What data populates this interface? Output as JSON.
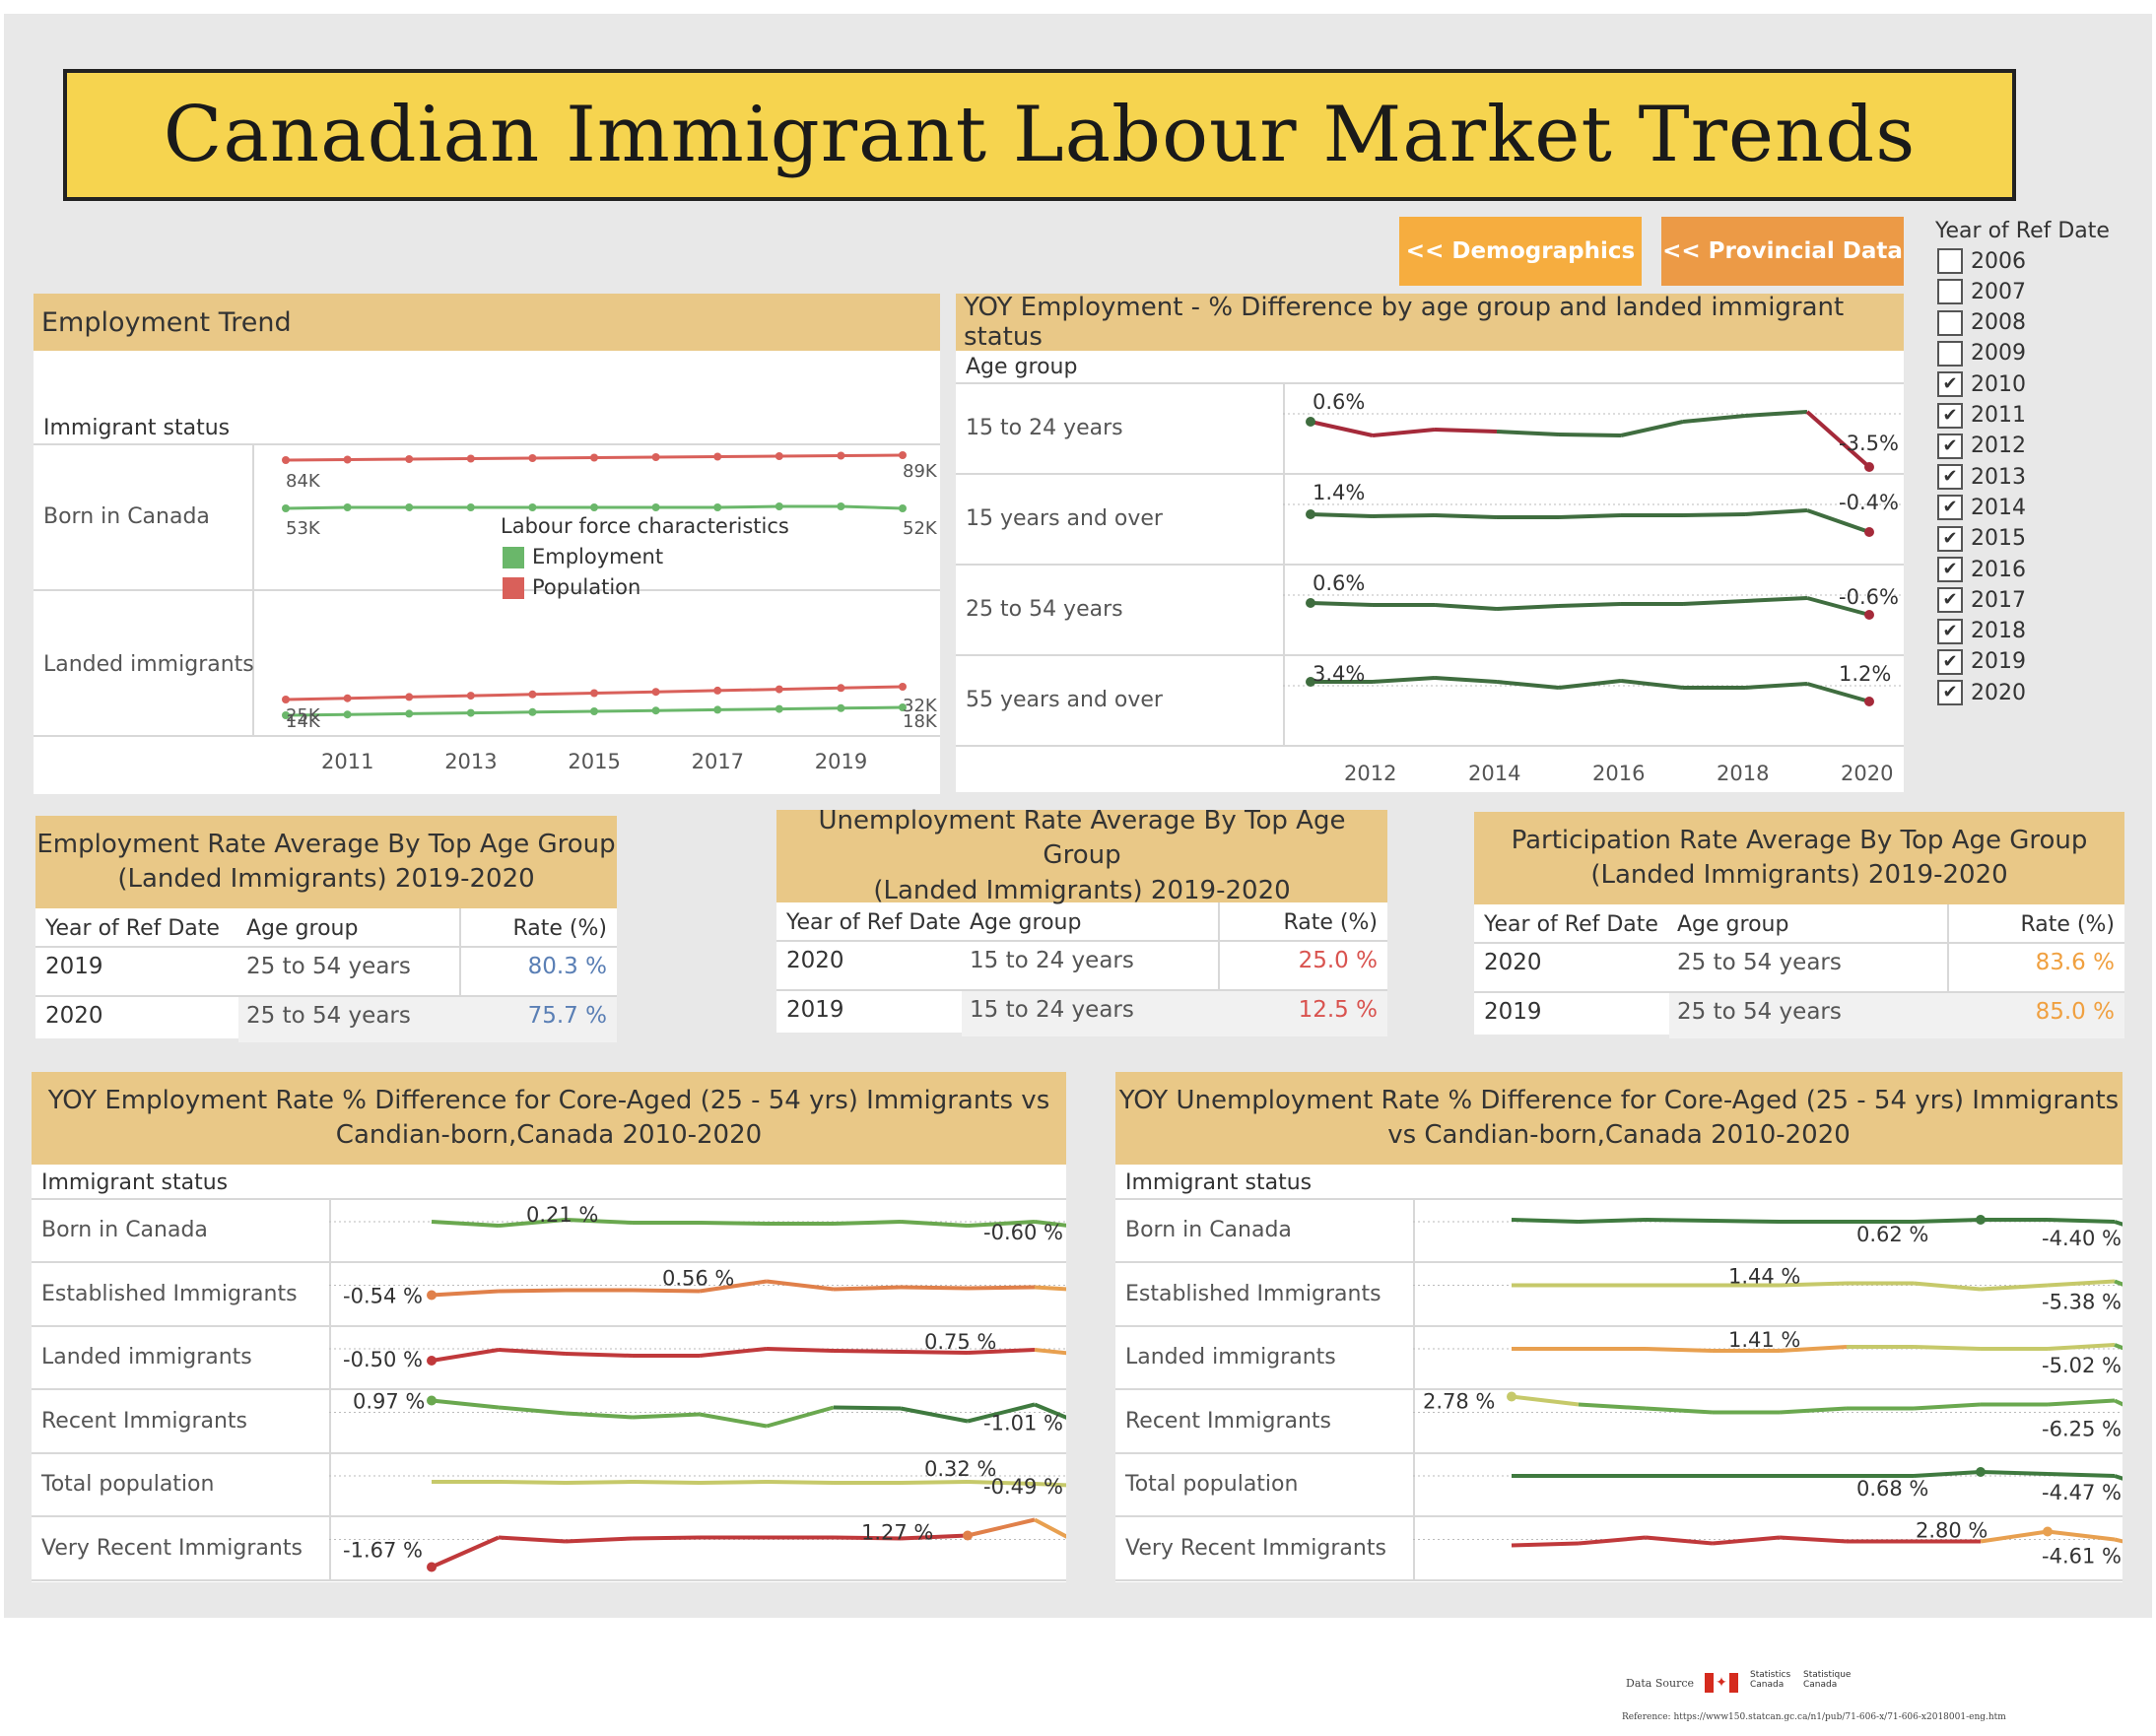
{
  "title": "Canadian Immigrant Labour Market Trends",
  "nav": {
    "demographics": "<< Demographics",
    "provincial": "<< Provincial Data",
    "colors": {
      "demographics": "#f6ad3f",
      "provincial": "#ec9a46"
    }
  },
  "filter": {
    "title": "Year of Ref Date",
    "items": [
      {
        "year": "2006",
        "checked": false
      },
      {
        "year": "2007",
        "checked": false
      },
      {
        "year": "2008",
        "checked": false
      },
      {
        "year": "2009",
        "checked": false
      },
      {
        "year": "2010",
        "checked": true
      },
      {
        "year": "2011",
        "checked": true
      },
      {
        "year": "2012",
        "checked": true
      },
      {
        "year": "2013",
        "checked": true
      },
      {
        "year": "2014",
        "checked": true
      },
      {
        "year": "2015",
        "checked": true
      },
      {
        "year": "2016",
        "checked": true
      },
      {
        "year": "2017",
        "checked": true
      },
      {
        "year": "2018",
        "checked": true
      },
      {
        "year": "2019",
        "checked": true
      },
      {
        "year": "2020",
        "checked": true
      }
    ],
    "check_glyph": "✔"
  },
  "employment_trend": {
    "title": "Employment Trend",
    "row_header": "Immigrant status",
    "rows": [
      "Born in Canada",
      "Landed immigrants"
    ],
    "legend_title": "Labour force characteristics",
    "legend": [
      {
        "name": "Employment",
        "color": "#6ab76a"
      },
      {
        "name": "Population",
        "color": "#d9605a"
      }
    ],
    "x_ticks": [
      "2011",
      "2013",
      "2015",
      "2017",
      "2019"
    ],
    "labels": {
      "born_pop_start": "84K",
      "born_pop_end": "89K",
      "born_emp_start": "53K",
      "born_emp_end": "52K",
      "landed_pop_start": "25K",
      "landed_pop_end": "32K",
      "landed_emp_start": "14K",
      "landed_emp_end": "18K"
    }
  },
  "yoy_age": {
    "title": "YOY Employment - % Difference by age group and landed immigrant status",
    "row_header": "Age group",
    "rows": [
      {
        "label": "15 to 24 years",
        "start": "0.6%",
        "end": "-3.5%"
      },
      {
        "label": "15 years and over",
        "start": "1.4%",
        "end": "-0.4%"
      },
      {
        "label": "25 to 54 years",
        "start": "0.6%",
        "end": "-0.6%"
      },
      {
        "label": "55 years and over",
        "start": "3.4%",
        "end": "1.2%"
      }
    ],
    "x_ticks": [
      "2012",
      "2014",
      "2016",
      "2018",
      "2020"
    ]
  },
  "tables": [
    {
      "title_line1": "Employment Rate Average By Top Age Group",
      "title_line2": "(Landed Immigrants) 2019-2020",
      "headers": [
        "Year of Ref Date",
        "Age group",
        "Rate (%)"
      ],
      "rows": [
        [
          "2019",
          "25 to 54 years",
          "80.3 %"
        ],
        [
          "2020",
          "25 to 54 years",
          "75.7 %"
        ]
      ],
      "rate_color": "#5a7fb5"
    },
    {
      "title_line1": "Unemployment Rate Average By Top Age Group",
      "title_line2": "(Landed Immigrants) 2019-2020",
      "headers": [
        "Year of Ref Date",
        "Age group",
        "Rate (%)"
      ],
      "rows": [
        [
          "2020",
          "15 to 24 years",
          "25.0 %"
        ],
        [
          "2019",
          "15 to 24 years",
          "12.5 %"
        ]
      ],
      "rate_color": "#d9534f"
    },
    {
      "title_line1": "Participation Rate Average By Top Age Group",
      "title_line2": "(Landed Immigrants) 2019-2020",
      "headers": [
        "Year of Ref Date",
        "Age group",
        "Rate (%)"
      ],
      "rows": [
        [
          "2020",
          "25 to 54 years",
          "83.6 %"
        ],
        [
          "2019",
          "25 to 54 years",
          "85.0 %"
        ]
      ],
      "rate_color": "#f0a040"
    }
  ],
  "yoy_emp_rate": {
    "title_line1": "YOY Employment Rate % Difference for Core-Aged (25 - 54 yrs) Immigrants vs",
    "title_line2": "Candian-born,Canada 2010-2020",
    "row_header": "Immigrant status",
    "rows": [
      {
        "label": "Born in Canada",
        "a": "0.21 %",
        "b": "-0.60 %"
      },
      {
        "label": "Established Immigrants",
        "a": "-0.54 %",
        "b": "0.56 %"
      },
      {
        "label": "Landed immigrants",
        "a": "-0.50 %",
        "b": "0.75 %"
      },
      {
        "label": "Recent Immigrants",
        "a": "0.97 %",
        "b": "-1.01 %"
      },
      {
        "label": "Total population",
        "a": "0.32 %",
        "b": "-0.49 %"
      },
      {
        "label": "Very Recent Immigrants",
        "a": "-1.67 %",
        "b": "1.27 %"
      }
    ]
  },
  "yoy_unemp_rate": {
    "title_line1": "YOY Unemployment Rate % Difference for Core-Aged (25 - 54 yrs) Immigrants",
    "title_line2": "vs Candian-born,Canada 2010-2020",
    "row_header": "Immigrant status",
    "rows": [
      {
        "label": "Born in Canada",
        "a": "0.62 %",
        "b": "-4.40 %"
      },
      {
        "label": "Established Immigrants",
        "a": "1.44 %",
        "b": "-5.38 %"
      },
      {
        "label": "Landed immigrants",
        "a": "1.41 %",
        "b": "-5.02 %"
      },
      {
        "label": "Recent Immigrants",
        "a": "2.78 %",
        "b": "-6.25 %"
      },
      {
        "label": "Total population",
        "a": "0.68 %",
        "b": "-4.47 %"
      },
      {
        "label": "Very Recent Immigrants",
        "a": "2.80 %",
        "b": "-4.61 %"
      }
    ]
  },
  "footer": {
    "data_source": "Data Source",
    "statcan_en": "Statistics Canada",
    "statcan_fr": "Statistique Canada",
    "reference": "Reference: https://www150.statcan.gc.ca/n1/pub/71-606-x/71-606-x2018001-eng.htm"
  }
}
